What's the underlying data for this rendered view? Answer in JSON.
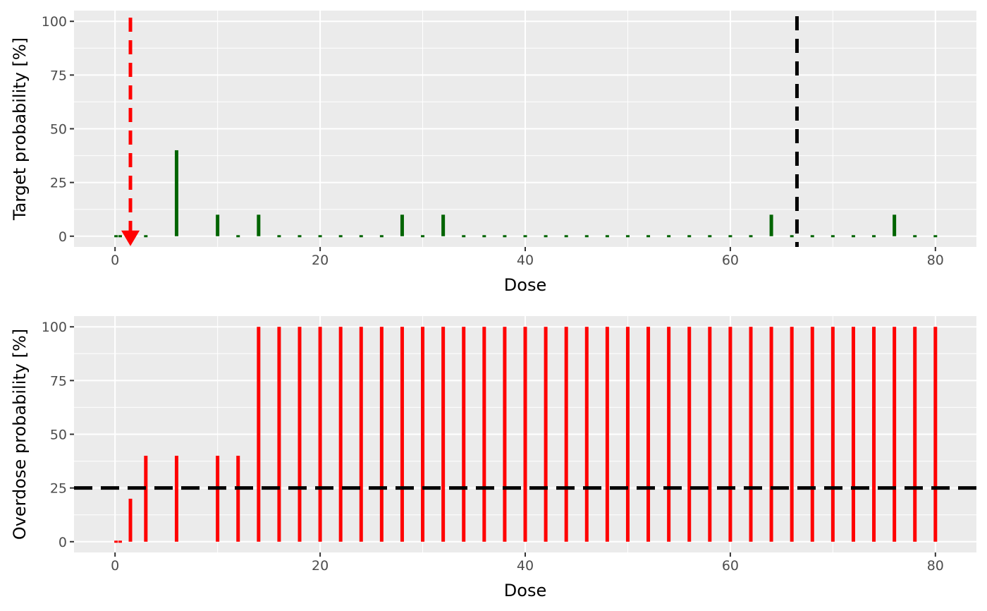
{
  "chart_data": [
    {
      "type": "bar",
      "xlabel": "Dose",
      "ylabel": "Target probability [%]",
      "color": "#006400",
      "x": [
        0.1,
        0.5,
        1.5,
        3,
        6,
        10,
        12,
        14,
        16,
        18,
        20,
        22,
        24,
        26,
        28,
        30,
        32,
        34,
        36,
        38,
        40,
        42,
        44,
        46,
        48,
        50,
        52,
        54,
        56,
        58,
        60,
        62,
        64,
        66,
        68,
        70,
        72,
        74,
        76,
        78,
        80
      ],
      "values": [
        0,
        0,
        0,
        0,
        40,
        10,
        0,
        10,
        0,
        0,
        0,
        0,
        0,
        0,
        10,
        0,
        10,
        0,
        0,
        0,
        0,
        0,
        0,
        0,
        0,
        0,
        0,
        0,
        0,
        0,
        0,
        0,
        10,
        0,
        0,
        0,
        0,
        0,
        10,
        0,
        0
      ],
      "xlim": [
        -4,
        84
      ],
      "ylim": [
        -5,
        105
      ],
      "xticks": [
        0,
        20,
        40,
        60,
        80
      ],
      "yticks": [
        0,
        25,
        50,
        75,
        100
      ],
      "grid": true,
      "next_dose": {
        "x": 1.5,
        "color": "#ff0000"
      },
      "max_dose": {
        "x": 66.5,
        "color": "#000000"
      }
    },
    {
      "type": "bar",
      "xlabel": "Dose",
      "ylabel": "Overdose probability [%]",
      "color": "#ff0000",
      "x": [
        0.1,
        0.5,
        1.5,
        3,
        6,
        10,
        12,
        14,
        16,
        18,
        20,
        22,
        24,
        26,
        28,
        30,
        32,
        34,
        36,
        38,
        40,
        42,
        44,
        46,
        48,
        50,
        52,
        54,
        56,
        58,
        60,
        62,
        64,
        66,
        68,
        70,
        72,
        74,
        76,
        78,
        80
      ],
      "values": [
        0,
        0,
        20,
        40,
        40,
        40,
        40,
        100,
        100,
        100,
        100,
        100,
        100,
        100,
        100,
        100,
        100,
        100,
        100,
        100,
        100,
        100,
        100,
        100,
        100,
        100,
        100,
        100,
        100,
        100,
        100,
        100,
        100,
        100,
        100,
        100,
        100,
        100,
        100,
        100,
        100
      ],
      "xlim": [
        -4,
        84
      ],
      "ylim": [
        -5,
        105
      ],
      "xticks": [
        0,
        20,
        40,
        60,
        80
      ],
      "yticks": [
        0,
        25,
        50,
        75,
        100
      ],
      "grid": true,
      "threshold": {
        "y": 25,
        "color": "#000000"
      }
    }
  ]
}
